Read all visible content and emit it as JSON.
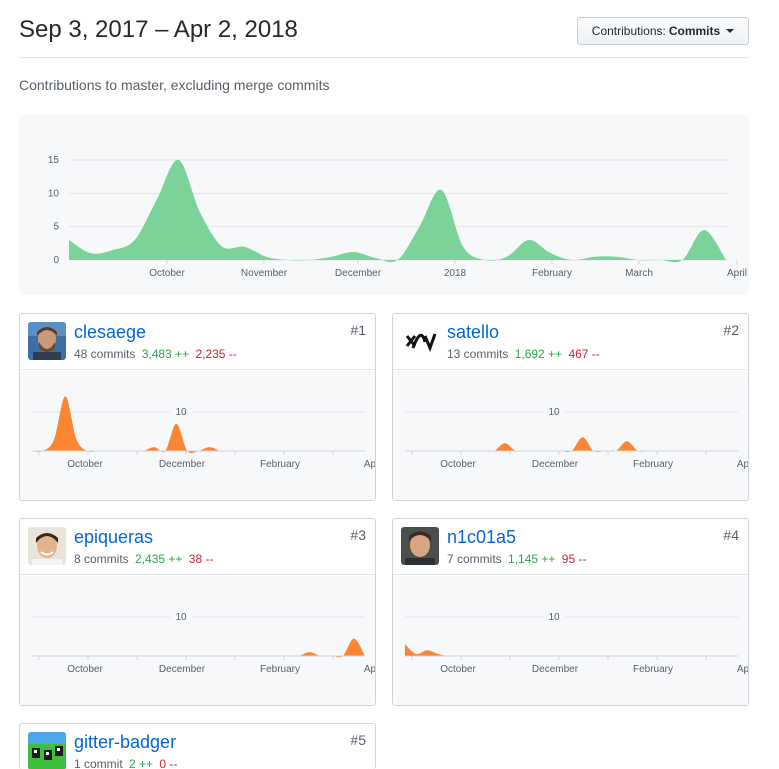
{
  "header": {
    "date_range": "Sep 3, 2017 – Apr 2, 2018",
    "contrib_prefix": "Contributions:",
    "contrib_value": "Commits",
    "subtitle": "Contributions to master, excluding merge commits"
  },
  "chart_data": [
    {
      "type": "area",
      "title": "Contributions to master, excluding merge commits",
      "color": "#7bd39a",
      "x_tick_labels": [
        "October",
        "November",
        "December",
        "2018",
        "February",
        "March",
        "April"
      ],
      "y_tick_labels": [
        "15",
        "10",
        "5",
        "0"
      ],
      "ylim": [
        0,
        15
      ],
      "weeks": [
        "Sep 3",
        "Sep 10",
        "Sep 17",
        "Sep 24",
        "Oct 1",
        "Oct 8",
        "Oct 15",
        "Oct 22",
        "Oct 29",
        "Nov 5",
        "Nov 12",
        "Nov 19",
        "Nov 26",
        "Dec 3",
        "Dec 10",
        "Dec 17",
        "Dec 24",
        "Dec 31",
        "Jan 7",
        "Jan 14",
        "Jan 21",
        "Jan 28",
        "Feb 4",
        "Feb 11",
        "Feb 18",
        "Feb 25",
        "Mar 4",
        "Mar 11",
        "Mar 18",
        "Mar 25",
        "Apr 1"
      ],
      "values": [
        3,
        1,
        1.5,
        3,
        9,
        15,
        7,
        2,
        2,
        0.5,
        0,
        0,
        0.5,
        1.2,
        0.3,
        0,
        5,
        10.5,
        2,
        0,
        0.5,
        3,
        1,
        0,
        0.5,
        0.5,
        0,
        0,
        0,
        4.5,
        0
      ]
    },
    {
      "type": "area",
      "title": "clesaege",
      "color": "#fb8532",
      "x_tick_labels": [
        "October",
        "December",
        "February",
        "Ap"
      ],
      "gridline_label": "10",
      "values": [
        0,
        0,
        3,
        14,
        3,
        0,
        0,
        0,
        0,
        0,
        0,
        1,
        0,
        7,
        0,
        0,
        1,
        0,
        0,
        0,
        0,
        0,
        0,
        0,
        0,
        0,
        0,
        0,
        0,
        0,
        0
      ]
    },
    {
      "type": "area",
      "title": "satello",
      "color": "#fb8532",
      "x_tick_labels": [
        "October",
        "December",
        "February",
        "Ap"
      ],
      "gridline_label": "10",
      "values": [
        0,
        0,
        0,
        0,
        0,
        0,
        0,
        0,
        0,
        2,
        0,
        0,
        0,
        0,
        0,
        0,
        3.5,
        0,
        0,
        0,
        2.5,
        0,
        0,
        0,
        0,
        0,
        0,
        0,
        0,
        0,
        0
      ]
    },
    {
      "type": "area",
      "title": "epiqueras",
      "color": "#fb8532",
      "x_tick_labels": [
        "October",
        "December",
        "February",
        "Ap"
      ],
      "gridline_label": "10",
      "values": [
        0,
        0,
        0,
        0,
        0,
        0,
        0,
        0,
        0,
        0,
        0,
        0,
        0,
        0,
        0,
        0,
        0,
        0,
        0,
        0,
        0,
        0,
        0,
        0,
        0,
        1,
        0,
        0,
        0,
        4.5,
        0
      ]
    },
    {
      "type": "area",
      "title": "n1c01a5",
      "color": "#fb8532",
      "x_tick_labels": [
        "October",
        "December",
        "February",
        "Ap"
      ],
      "gridline_label": "10",
      "values": [
        3,
        0.5,
        1.5,
        0.5,
        0,
        0,
        0,
        0,
        0,
        0,
        0,
        0,
        0,
        0,
        0,
        0,
        0,
        0,
        0,
        0,
        0,
        0,
        0,
        0,
        0,
        0,
        0,
        0,
        0,
        0,
        0
      ]
    }
  ],
  "contributors": [
    {
      "login": "clesaege",
      "commits": "48 commits",
      "additions": "3,483 ++",
      "deletions": "2,235 --",
      "rank": "#1",
      "avatar": "photo-avatar"
    },
    {
      "login": "satello",
      "commits": "13 commits",
      "additions": "1,692 ++",
      "deletions": "467 --",
      "rank": "#2",
      "avatar": "logo-avatar"
    },
    {
      "login": "epiqueras",
      "commits": "8 commits",
      "additions": "2,435 ++",
      "deletions": "38 --",
      "rank": "#3",
      "avatar": "photo-avatar"
    },
    {
      "login": "n1c01a5",
      "commits": "7 commits",
      "additions": "1,145 ++",
      "deletions": "95 --",
      "rank": "#4",
      "avatar": "photo-avatar"
    },
    {
      "login": "gitter-badger",
      "commits": "1 commit",
      "additions": "2 ++",
      "deletions": "0 --",
      "rank": "#5",
      "avatar": "pixel-avatar"
    }
  ]
}
